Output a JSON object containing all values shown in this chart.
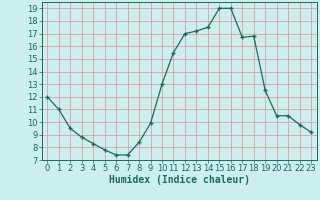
{
  "x": [
    0,
    1,
    2,
    3,
    4,
    5,
    6,
    7,
    8,
    9,
    10,
    11,
    12,
    13,
    14,
    15,
    16,
    17,
    18,
    19,
    20,
    21,
    22,
    23
  ],
  "y": [
    12,
    11,
    9.5,
    8.8,
    8.3,
    7.8,
    7.4,
    7.4,
    8.4,
    9.9,
    13,
    15.5,
    17,
    17.2,
    17.5,
    19,
    19,
    16.7,
    16.8,
    12.5,
    10.5,
    10.5,
    9.8,
    9.2
  ],
  "line_color": "#1a6b5e",
  "marker": "+",
  "marker_size": 3,
  "marker_linewidth": 1.0,
  "bg_color": "#cceeed",
  "grid_color": "#dda0a0",
  "xlabel": "Humidex (Indice chaleur)",
  "xlabel_fontsize": 7,
  "tick_fontsize": 6,
  "ylim": [
    7,
    19.5
  ],
  "xlim": [
    -0.5,
    23.5
  ],
  "yticks": [
    7,
    8,
    9,
    10,
    11,
    12,
    13,
    14,
    15,
    16,
    17,
    18,
    19
  ],
  "xticks": [
    0,
    1,
    2,
    3,
    4,
    5,
    6,
    7,
    8,
    9,
    10,
    11,
    12,
    13,
    14,
    15,
    16,
    17,
    18,
    19,
    20,
    21,
    22,
    23
  ]
}
